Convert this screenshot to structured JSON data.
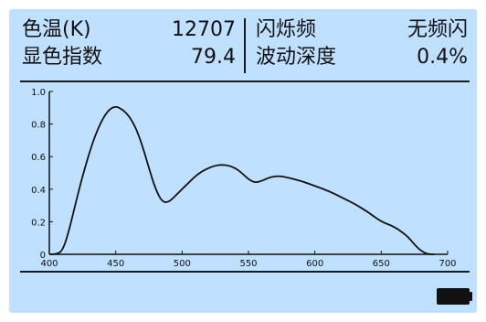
{
  "metrics": {
    "cct_label": "色温(K)",
    "cct_value": "12707",
    "cri_label": "显色指数",
    "cri_value": "79.4",
    "flicker_freq_label": "闪烁频",
    "flicker_freq_value": "无频闪",
    "flicker_depth_label": "波动深度",
    "flicker_depth_value": "0.4%"
  },
  "status": {
    "battery_icon": "battery-full-icon"
  },
  "colors": {
    "screen_bg": "#bfe0ff",
    "ink": "#111111"
  },
  "chart_data": {
    "type": "line",
    "title": "",
    "xlabel": "",
    "ylabel": "",
    "xlim": [
      400,
      700
    ],
    "ylim": [
      0,
      1.0
    ],
    "xticks": [
      "400",
      "450",
      "500",
      "550",
      "600",
      "650",
      "700"
    ],
    "yticks": [
      "0",
      "0.2",
      "0.4",
      "0.6",
      "0.8",
      "1.0"
    ],
    "grid": false,
    "series": [
      {
        "points": [
          [
            400,
            0.0
          ],
          [
            405,
            0.0
          ],
          [
            410,
            0.02
          ],
          [
            415,
            0.15
          ],
          [
            420,
            0.32
          ],
          [
            425,
            0.48
          ],
          [
            430,
            0.62
          ],
          [
            435,
            0.74
          ],
          [
            440,
            0.83
          ],
          [
            445,
            0.89
          ],
          [
            450,
            0.91
          ],
          [
            455,
            0.89
          ],
          [
            460,
            0.85
          ],
          [
            465,
            0.78
          ],
          [
            470,
            0.67
          ],
          [
            475,
            0.53
          ],
          [
            480,
            0.4
          ],
          [
            485,
            0.32
          ],
          [
            490,
            0.32
          ],
          [
            495,
            0.36
          ],
          [
            500,
            0.4
          ],
          [
            505,
            0.44
          ],
          [
            510,
            0.48
          ],
          [
            515,
            0.51
          ],
          [
            520,
            0.53
          ],
          [
            525,
            0.545
          ],
          [
            530,
            0.55
          ],
          [
            535,
            0.545
          ],
          [
            540,
            0.53
          ],
          [
            545,
            0.5
          ],
          [
            550,
            0.46
          ],
          [
            555,
            0.44
          ],
          [
            560,
            0.45
          ],
          [
            565,
            0.47
          ],
          [
            570,
            0.48
          ],
          [
            575,
            0.48
          ],
          [
            580,
            0.47
          ],
          [
            590,
            0.45
          ],
          [
            600,
            0.42
          ],
          [
            610,
            0.39
          ],
          [
            620,
            0.35
          ],
          [
            630,
            0.31
          ],
          [
            640,
            0.26
          ],
          [
            650,
            0.2
          ],
          [
            660,
            0.17
          ],
          [
            670,
            0.11
          ],
          [
            675,
            0.06
          ],
          [
            680,
            0.02
          ],
          [
            685,
            0.0
          ],
          [
            690,
            0.0
          ]
        ]
      }
    ]
  }
}
